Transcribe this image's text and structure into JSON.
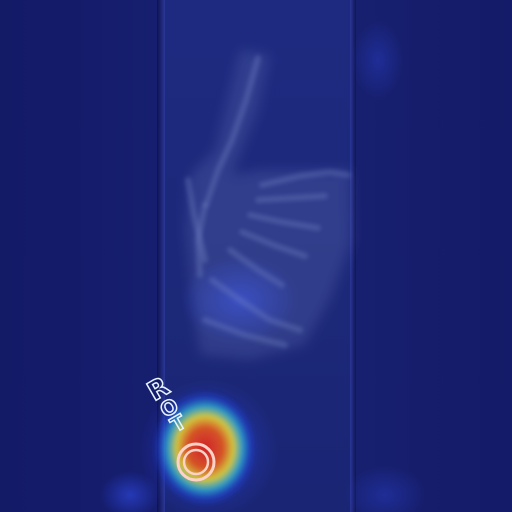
{
  "image": {
    "kind": "hand radiograph with heatmap overlay",
    "palette": {
      "background": "#141c6a",
      "film": "#1d2a80",
      "heat_low": "#1f3fd6",
      "heat_mid": "#2ec7d8",
      "heat_high": "#f2e12a",
      "heat_peak": "#d91f1f"
    },
    "marker": {
      "letters": [
        "R",
        "O",
        "T"
      ],
      "ring_label": "marker ring"
    }
  }
}
